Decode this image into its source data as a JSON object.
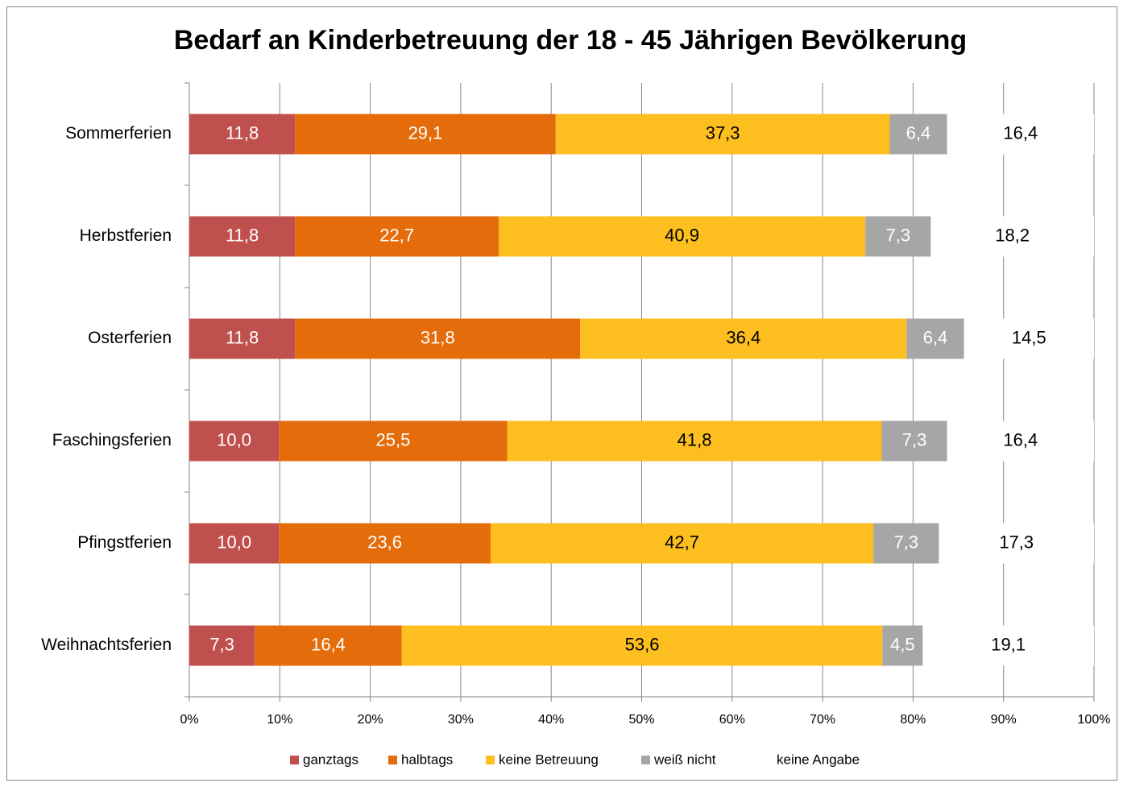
{
  "chart_data": {
    "type": "bar",
    "orientation": "horizontal",
    "stacking": "percent",
    "title": "Bedarf an Kinderbetreuung der 18 - 45 Jährigen Bevölkerung",
    "categories": [
      "Sommerferien",
      "Herbstferien",
      "Osterferien",
      "Faschingsferien",
      "Pfingstferien",
      "Weihnachtsferien"
    ],
    "series": [
      {
        "name": "ganztags",
        "color": "#c0504d",
        "label_color": "#ffffff",
        "values": [
          11.8,
          11.8,
          11.8,
          10.0,
          10.0,
          7.3
        ],
        "value_labels": [
          "11,8",
          "11,8",
          "11,8",
          "10,0",
          "10,0",
          "7,3"
        ]
      },
      {
        "name": "halbtags",
        "color": "#e46c0a",
        "label_color": "#ffffff",
        "values": [
          29.1,
          22.7,
          31.8,
          25.5,
          23.6,
          16.4
        ],
        "value_labels": [
          "29,1",
          "22,7",
          "31,8",
          "25,5",
          "23,6",
          "16,4"
        ]
      },
      {
        "name": "keine Betreuung",
        "color": "#fcbf1f",
        "label_color": "#000000",
        "values": [
          37.3,
          40.9,
          36.4,
          41.8,
          42.7,
          53.6
        ],
        "value_labels": [
          "37,3",
          "40,9",
          "36,4",
          "41,8",
          "42,7",
          "53,6"
        ]
      },
      {
        "name": "weiß nicht",
        "color": "#a6a6a6",
        "label_color": "#ffffff",
        "values": [
          6.4,
          7.3,
          6.4,
          7.3,
          7.3,
          4.5
        ],
        "value_labels": [
          "6,4",
          "7,3",
          "6,4",
          "7,3",
          "7,3",
          "4,5"
        ]
      },
      {
        "name": "keine Angabe",
        "color": "#ffffff",
        "label_color": "#000000",
        "values": [
          16.4,
          18.2,
          14.5,
          16.4,
          17.3,
          19.1
        ],
        "value_labels": [
          "16,4",
          "18,2",
          "14,5",
          "16,4",
          "17,3",
          "19,1"
        ]
      }
    ],
    "xlim": [
      0,
      100
    ],
    "xticks": [
      {
        "value": 0,
        "label": "0%"
      },
      {
        "value": 10,
        "label": "10%"
      },
      {
        "value": 20,
        "label": "20%"
      },
      {
        "value": 30,
        "label": "30%"
      },
      {
        "value": 40,
        "label": "40%"
      },
      {
        "value": 50,
        "label": "50%"
      },
      {
        "value": 60,
        "label": "60%"
      },
      {
        "value": 70,
        "label": "70%"
      },
      {
        "value": 80,
        "label": "80%"
      },
      {
        "value": 90,
        "label": "90%"
      },
      {
        "value": 100,
        "label": "100%"
      }
    ],
    "grid": true,
    "legend": "bottom"
  }
}
